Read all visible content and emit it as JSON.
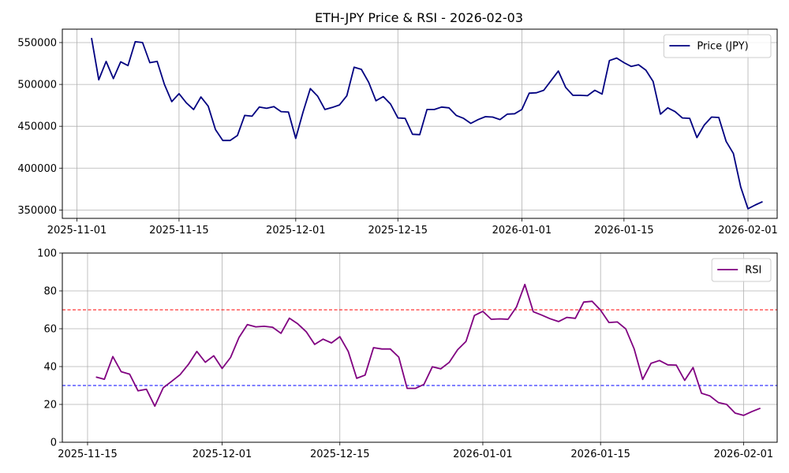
{
  "chart_data": [
    {
      "type": "line",
      "title": "ETH-JPY Price & RSI - 2026-02-03",
      "xlabel": "",
      "ylabel": "",
      "x_ticks": [
        "2025-11-01",
        "2025-11-15",
        "2025-12-01",
        "2025-12-15",
        "2026-01-01",
        "2026-01-15",
        "2026-02-01"
      ],
      "y_ticks": [
        350000,
        400000,
        450000,
        500000,
        550000
      ],
      "xlim": [
        "2025-10-30",
        "2026-02-05"
      ],
      "ylim": [
        340000,
        566000
      ],
      "grid": true,
      "legend_position": "top-right",
      "series": [
        {
          "name": "Price (JPY)",
          "color": "#000080",
          "x": [
            "2025-11-03",
            "2025-11-04",
            "2025-11-05",
            "2025-11-06",
            "2025-11-07",
            "2025-11-08",
            "2025-11-09",
            "2025-11-10",
            "2025-11-11",
            "2025-11-12",
            "2025-11-13",
            "2025-11-14",
            "2025-11-15",
            "2025-11-16",
            "2025-11-17",
            "2025-11-18",
            "2025-11-19",
            "2025-11-20",
            "2025-11-21",
            "2025-11-22",
            "2025-11-23",
            "2025-11-24",
            "2025-11-25",
            "2025-11-26",
            "2025-11-27",
            "2025-11-28",
            "2025-11-29",
            "2025-11-30",
            "2025-12-01",
            "2025-12-02",
            "2025-12-03",
            "2025-12-04",
            "2025-12-05",
            "2025-12-06",
            "2025-12-07",
            "2025-12-08",
            "2025-12-09",
            "2025-12-10",
            "2025-12-11",
            "2025-12-12",
            "2025-12-13",
            "2025-12-14",
            "2025-12-15",
            "2025-12-16",
            "2025-12-17",
            "2025-12-18",
            "2025-12-19",
            "2025-12-20",
            "2025-12-21",
            "2025-12-22",
            "2025-12-23",
            "2025-12-24",
            "2025-12-25",
            "2025-12-26",
            "2025-12-27",
            "2025-12-28",
            "2025-12-29",
            "2025-12-30",
            "2025-12-31",
            "2026-01-01",
            "2026-01-02",
            "2026-01-03",
            "2026-01-04",
            "2026-01-05",
            "2026-01-06",
            "2026-01-07",
            "2026-01-08",
            "2026-01-09",
            "2026-01-10",
            "2026-01-11",
            "2026-01-12",
            "2026-01-13",
            "2026-01-14",
            "2026-01-15",
            "2026-01-16",
            "2026-01-17",
            "2026-01-18",
            "2026-01-19",
            "2026-01-20",
            "2026-01-21",
            "2026-01-22",
            "2026-01-23",
            "2026-01-24",
            "2026-01-25",
            "2026-01-26",
            "2026-01-27",
            "2026-01-28",
            "2026-01-29",
            "2026-01-30",
            "2026-01-31",
            "2026-02-01",
            "2026-02-02",
            "2026-02-03"
          ],
          "values": [
            555500,
            505500,
            527500,
            507000,
            527000,
            522500,
            551000,
            550000,
            526000,
            527500,
            500000,
            479500,
            489000,
            478000,
            470000,
            485000,
            474000,
            446000,
            433000,
            433000,
            439000,
            463000,
            462000,
            473000,
            471500,
            473500,
            467500,
            467000,
            435500,
            467000,
            495000,
            486000,
            470000,
            472500,
            475500,
            486500,
            520500,
            518000,
            502500,
            480500,
            485500,
            476500,
            460000,
            459500,
            440500,
            440000,
            470000,
            470000,
            473000,
            472000,
            463000,
            459500,
            453500,
            458000,
            461500,
            461000,
            458000,
            464500,
            465000,
            470000,
            489500,
            490000,
            493000,
            504500,
            516000,
            496500,
            487000,
            487000,
            486500,
            493000,
            488500,
            528500,
            531500,
            526000,
            521500,
            523500,
            517000,
            503500,
            464500,
            472000,
            467500,
            460000,
            459500,
            436500,
            451500,
            461000,
            460500,
            432000,
            417500,
            377500,
            351500,
            356000,
            360000
          ]
        }
      ]
    },
    {
      "type": "line",
      "title": "",
      "xlabel": "",
      "ylabel": "",
      "x_ticks": [
        "2025-11-15",
        "2025-12-01",
        "2025-12-15",
        "2026-01-01",
        "2026-01-15",
        "2026-02-01"
      ],
      "y_ticks": [
        0,
        20,
        40,
        60,
        80,
        100
      ],
      "xlim": [
        "2025-11-12",
        "2026-02-05"
      ],
      "ylim": [
        0,
        100
      ],
      "grid": true,
      "legend_position": "top-right",
      "reference_lines": [
        {
          "value": 70,
          "color": "#ff0000",
          "style": "dashed"
        },
        {
          "value": 30,
          "color": "#0000ff",
          "style": "dashed"
        }
      ],
      "series": [
        {
          "name": "RSI",
          "color": "#800080",
          "x": [
            "2025-11-16",
            "2025-11-17",
            "2025-11-18",
            "2025-11-19",
            "2025-11-20",
            "2025-11-21",
            "2025-11-22",
            "2025-11-23",
            "2025-11-24",
            "2025-11-25",
            "2025-11-26",
            "2025-11-27",
            "2025-11-28",
            "2025-11-29",
            "2025-11-30",
            "2025-12-01",
            "2025-12-02",
            "2025-12-03",
            "2025-12-04",
            "2025-12-05",
            "2025-12-06",
            "2025-12-07",
            "2025-12-08",
            "2025-12-09",
            "2025-12-10",
            "2025-12-11",
            "2025-12-12",
            "2025-12-13",
            "2025-12-14",
            "2025-12-15",
            "2025-12-16",
            "2025-12-17",
            "2025-12-18",
            "2025-12-19",
            "2025-12-20",
            "2025-12-21",
            "2025-12-22",
            "2025-12-23",
            "2025-12-24",
            "2025-12-25",
            "2025-12-26",
            "2025-12-27",
            "2025-12-28",
            "2025-12-29",
            "2025-12-30",
            "2025-12-31",
            "2026-01-01",
            "2026-01-02",
            "2026-01-03",
            "2026-01-04",
            "2026-01-05",
            "2026-01-06",
            "2026-01-07",
            "2026-01-08",
            "2026-01-09",
            "2026-01-10",
            "2026-01-11",
            "2026-01-12",
            "2026-01-13",
            "2026-01-14",
            "2026-01-15",
            "2026-01-16",
            "2026-01-17",
            "2026-01-18",
            "2026-01-19",
            "2026-01-20",
            "2026-01-21",
            "2026-01-22",
            "2026-01-23",
            "2026-01-24",
            "2026-01-25",
            "2026-01-26",
            "2026-01-27",
            "2026-01-28",
            "2026-01-29",
            "2026-01-30",
            "2026-01-31",
            "2026-02-01",
            "2026-02-02",
            "2026-02-03"
          ],
          "values": [
            34.5,
            33.3,
            45.3,
            37.3,
            36.0,
            27.2,
            28.0,
            19.1,
            28.8,
            32.2,
            35.7,
            41.2,
            48.0,
            42.3,
            45.7,
            39.0,
            44.8,
            55.3,
            62.2,
            61.0,
            61.3,
            60.8,
            57.6,
            65.6,
            62.6,
            58.4,
            51.7,
            54.5,
            52.5,
            55.8,
            48.0,
            33.8,
            35.5,
            50.0,
            49.3,
            49.3,
            45.0,
            28.5,
            28.5,
            30.6,
            39.9,
            38.8,
            42.2,
            48.9,
            53.3,
            67.0,
            69.2,
            65.0,
            65.2,
            65.0,
            71.5,
            83.4,
            69.0,
            67.2,
            65.3,
            63.8,
            66.0,
            65.5,
            74.1,
            74.5,
            69.8,
            63.3,
            63.6,
            59.9,
            49.3,
            33.2,
            41.7,
            43.2,
            40.9,
            40.8,
            32.7,
            39.5,
            25.9,
            24.5,
            21.0,
            20.0,
            15.4,
            14.2,
            16.2,
            18.0
          ]
        }
      ]
    }
  ]
}
